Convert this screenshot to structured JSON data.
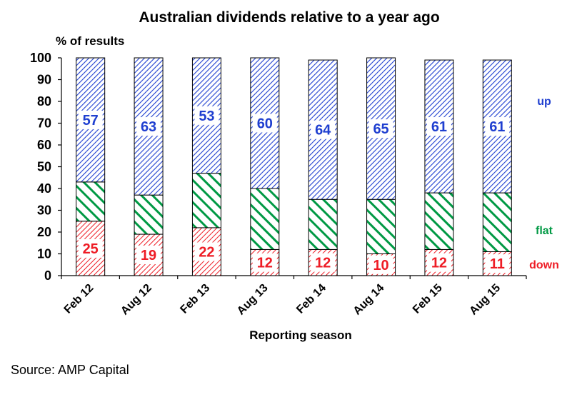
{
  "chart_data": {
    "type": "bar",
    "stacked": true,
    "title": "Australian dividends relative to a year ago",
    "ylabel": "% of results",
    "xlabel": "Reporting season",
    "ylim": [
      0,
      100
    ],
    "yticks": [
      0,
      10,
      20,
      30,
      40,
      50,
      60,
      70,
      80,
      90,
      100
    ],
    "categories": [
      "Feb 12",
      "Aug 12",
      "Feb 13",
      "Aug 13",
      "Feb 14",
      "Aug 14",
      "Feb 15",
      "Aug 15"
    ],
    "series": [
      {
        "name": "down",
        "color": "#ee1c25",
        "values": [
          25,
          19,
          22,
          12,
          12,
          10,
          12,
          11
        ]
      },
      {
        "name": "flat",
        "color": "#009944",
        "values": [
          18,
          18,
          25,
          28,
          23,
          25,
          26,
          27
        ]
      },
      {
        "name": "up",
        "color": "#1f3fd0",
        "values": [
          57,
          63,
          53,
          60,
          64,
          65,
          61,
          61
        ]
      }
    ],
    "data_labels": {
      "down": [
        "25",
        "19",
        "22",
        "12",
        "12",
        "10",
        "12",
        "11"
      ],
      "up": [
        "57",
        "63",
        "53",
        "60",
        "64",
        "65",
        "61",
        "61"
      ]
    },
    "legend": [
      "up",
      "flat",
      "down"
    ],
    "legend_placement": "right",
    "grid": false
  },
  "footer": {
    "source": "Source: AMP Capital"
  }
}
